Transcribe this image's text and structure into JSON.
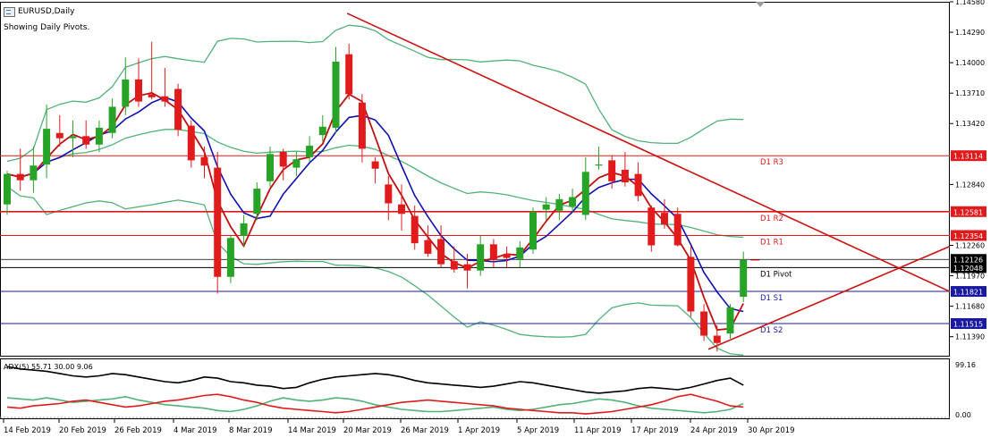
{
  "header": {
    "symbol_title": "EURUSD,Daily",
    "indicator_note": "Showing Daily Pivots."
  },
  "adx_label": "ADX(5) 55.71 30.00 9.06",
  "price_axis": {
    "ticks": [
      "1.14580",
      "1.14290",
      "1.14000",
      "1.13710",
      "1.13420",
      "1.12840",
      "1.12260",
      "1.11970",
      "1.11680",
      "1.11390"
    ]
  },
  "pivot_levels": [
    {
      "label": "D1 R3",
      "price": "1.13114",
      "color": "#e11b1b"
    },
    {
      "label": "D1 R2",
      "price": "1.12581",
      "color": "#e11b1b"
    },
    {
      "label": "D1 R1",
      "price": "1.12354",
      "color": "#e11b1b"
    },
    {
      "label": "D1 Pivot",
      "price": "1.12048",
      "color": "#000000"
    },
    {
      "label": "D1 S1",
      "price": "1.11821",
      "color": "#1a1aa0"
    },
    {
      "label": "D1 S2",
      "price": "1.11515",
      "color": "#1a1aa0"
    }
  ],
  "current_price": "1.12126",
  "adx_axis": {
    "top": "99.16",
    "bottom": "0.00"
  },
  "date_axis": [
    "14 Feb 2019",
    "20 Feb 2019",
    "26 Feb 2019",
    "4 Mar 2019",
    "8 Mar 2019",
    "14 Mar 2019",
    "20 Mar 2019",
    "26 Mar 2019",
    "1 Apr 2019",
    "5 Apr 2019",
    "11 Apr 2019",
    "17 Apr 2019",
    "24 Apr 2019",
    "30 Apr 2019"
  ],
  "colors": {
    "bull": "#27a327",
    "bear": "#e11b1b",
    "ma_fast": "#c01010",
    "ma_slow": "#1010b0",
    "bollinger": "#52b27a",
    "trendline": "#cc1111"
  },
  "chart_data": {
    "type": "candlestick",
    "title": "EURUSD,Daily",
    "ylim": [
      1.112,
      1.1458
    ],
    "candles": [
      {
        "o": 1.1265,
        "h": 1.1297,
        "l": 1.1255,
        "c": 1.1294
      },
      {
        "o": 1.1294,
        "h": 1.1318,
        "l": 1.1278,
        "c": 1.1288
      },
      {
        "o": 1.1288,
        "h": 1.132,
        "l": 1.1276,
        "c": 1.1302
      },
      {
        "o": 1.1303,
        "h": 1.136,
        "l": 1.129,
        "c": 1.1337
      },
      {
        "o": 1.1333,
        "h": 1.135,
        "l": 1.132,
        "c": 1.1328
      },
      {
        "o": 1.1328,
        "h": 1.1345,
        "l": 1.131,
        "c": 1.133
      },
      {
        "o": 1.133,
        "h": 1.1345,
        "l": 1.1318,
        "c": 1.1322
      },
      {
        "o": 1.1322,
        "h": 1.1345,
        "l": 1.1315,
        "c": 1.1338
      },
      {
        "o": 1.1333,
        "h": 1.1366,
        "l": 1.1328,
        "c": 1.1358
      },
      {
        "o": 1.1358,
        "h": 1.1405,
        "l": 1.135,
        "c": 1.1384
      },
      {
        "o": 1.1384,
        "h": 1.1404,
        "l": 1.1358,
        "c": 1.1363
      },
      {
        "o": 1.137,
        "h": 1.142,
        "l": 1.1365,
        "c": 1.1367
      },
      {
        "o": 1.1368,
        "h": 1.1395,
        "l": 1.1358,
        "c": 1.1363
      },
      {
        "o": 1.1375,
        "h": 1.138,
        "l": 1.133,
        "c": 1.1336
      },
      {
        "o": 1.134,
        "h": 1.1345,
        "l": 1.13,
        "c": 1.1307
      },
      {
        "o": 1.131,
        "h": 1.132,
        "l": 1.129,
        "c": 1.1302
      },
      {
        "o": 1.13,
        "h": 1.1315,
        "l": 1.118,
        "c": 1.1196
      },
      {
        "o": 1.1196,
        "h": 1.1235,
        "l": 1.119,
        "c": 1.1233
      },
      {
        "o": 1.1235,
        "h": 1.1255,
        "l": 1.1225,
        "c": 1.1247
      },
      {
        "o": 1.1256,
        "h": 1.1286,
        "l": 1.125,
        "c": 1.128
      },
      {
        "o": 1.1287,
        "h": 1.132,
        "l": 1.1282,
        "c": 1.1313
      },
      {
        "o": 1.1315,
        "h": 1.1318,
        "l": 1.1288,
        "c": 1.1301
      },
      {
        "o": 1.13,
        "h": 1.1315,
        "l": 1.1292,
        "c": 1.1308
      },
      {
        "o": 1.131,
        "h": 1.133,
        "l": 1.1305,
        "c": 1.1321
      },
      {
        "o": 1.1331,
        "h": 1.135,
        "l": 1.1325,
        "c": 1.1339
      },
      {
        "o": 1.1338,
        "h": 1.1415,
        "l": 1.1333,
        "c": 1.1401
      },
      {
        "o": 1.1408,
        "h": 1.1418,
        "l": 1.1365,
        "c": 1.137
      },
      {
        "o": 1.1362,
        "h": 1.137,
        "l": 1.1305,
        "c": 1.1318
      },
      {
        "o": 1.1306,
        "h": 1.131,
        "l": 1.1285,
        "c": 1.1299
      },
      {
        "o": 1.1284,
        "h": 1.1292,
        "l": 1.125,
        "c": 1.1266
      },
      {
        "o": 1.1265,
        "h": 1.1284,
        "l": 1.124,
        "c": 1.1256
      },
      {
        "o": 1.1254,
        "h": 1.1264,
        "l": 1.1222,
        "c": 1.1228
      },
      {
        "o": 1.1231,
        "h": 1.1245,
        "l": 1.1215,
        "c": 1.1218
      },
      {
        "o": 1.1232,
        "h": 1.1245,
        "l": 1.1205,
        "c": 1.1208
      },
      {
        "o": 1.1211,
        "h": 1.1225,
        "l": 1.12,
        "c": 1.1203
      },
      {
        "o": 1.1208,
        "h": 1.1218,
        "l": 1.1185,
        "c": 1.1202
      },
      {
        "o": 1.1202,
        "h": 1.1235,
        "l": 1.1197,
        "c": 1.1227
      },
      {
        "o": 1.1227,
        "h": 1.1232,
        "l": 1.1205,
        "c": 1.1212
      },
      {
        "o": 1.1218,
        "h": 1.1225,
        "l": 1.1205,
        "c": 1.1214
      },
      {
        "o": 1.1213,
        "h": 1.123,
        "l": 1.1205,
        "c": 1.1224
      },
      {
        "o": 1.1222,
        "h": 1.1262,
        "l": 1.1218,
        "c": 1.1258
      },
      {
        "o": 1.126,
        "h": 1.1272,
        "l": 1.125,
        "c": 1.1265
      },
      {
        "o": 1.1259,
        "h": 1.1275,
        "l": 1.125,
        "c": 1.127
      },
      {
        "o": 1.1263,
        "h": 1.128,
        "l": 1.1258,
        "c": 1.1272
      },
      {
        "o": 1.1255,
        "h": 1.131,
        "l": 1.125,
        "c": 1.1296
      },
      {
        "o": 1.1302,
        "h": 1.132,
        "l": 1.1298,
        "c": 1.1303
      },
      {
        "o": 1.1307,
        "h": 1.1312,
        "l": 1.128,
        "c": 1.1287
      },
      {
        "o": 1.1298,
        "h": 1.1315,
        "l": 1.1282,
        "c": 1.1286
      },
      {
        "o": 1.1294,
        "h": 1.1305,
        "l": 1.1268,
        "c": 1.1273
      },
      {
        "o": 1.1262,
        "h": 1.1264,
        "l": 1.122,
        "c": 1.1226
      },
      {
        "o": 1.1257,
        "h": 1.127,
        "l": 1.1242,
        "c": 1.1246
      },
      {
        "o": 1.1256,
        "h": 1.1262,
        "l": 1.1225,
        "c": 1.1226
      },
      {
        "o": 1.1215,
        "h": 1.1225,
        "l": 1.1158,
        "c": 1.1163
      },
      {
        "o": 1.1163,
        "h": 1.117,
        "l": 1.1135,
        "c": 1.114
      },
      {
        "o": 1.114,
        "h": 1.115,
        "l": 1.1125,
        "c": 1.1133
      },
      {
        "o": 1.1142,
        "h": 1.117,
        "l": 1.1137,
        "c": 1.1167
      },
      {
        "o": 1.1177,
        "h": 1.122,
        "l": 1.1172,
        "c": 1.1212
      }
    ],
    "pivot_levels": [
      1.13114,
      1.12581,
      1.12354,
      1.12048,
      1.11821,
      1.11515
    ],
    "adx_ylim": [
      0.0,
      99.16
    ],
    "x_ticks": [
      "14 Feb 2019",
      "20 Feb 2019",
      "26 Feb 2019",
      "4 Mar 2019",
      "8 Mar 2019",
      "14 Mar 2019",
      "20 Mar 2019",
      "26 Mar 2019",
      "1 Apr 2019",
      "5 Apr 2019",
      "11 Apr 2019",
      "17 Apr 2019",
      "24 Apr 2019",
      "30 Apr 2019"
    ]
  }
}
